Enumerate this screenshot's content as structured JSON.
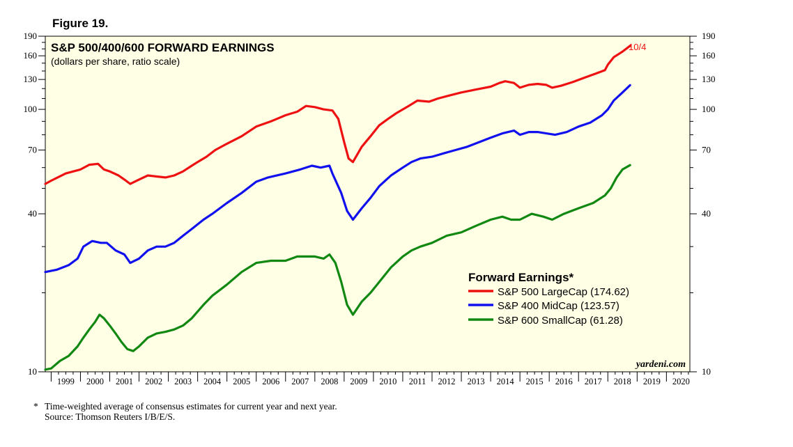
{
  "figure_label": "Figure 19.",
  "watermark": "yardeni.com",
  "footnote": {
    "marker": "*",
    "line1": "Time-weighted average of consensus estimates for current year and next year.",
    "line2": "Source: Thomson Reuters I/B/E/S."
  },
  "colors": {
    "plot_bg": "#ffffe6",
    "sp500": "#ee1111",
    "sp400": "#1111ee",
    "sp600": "#118811",
    "end_label": "#ee1111"
  },
  "chart_data": {
    "type": "line",
    "title": "S&P 500/400/600 FORWARD EARNINGS",
    "subtitle": "(dollars per share, ratio scale)",
    "y_scale": "log",
    "ylim": [
      10,
      190
    ],
    "xlim": [
      1998.8,
      2020.8
    ],
    "yticks": [
      10,
      40,
      70,
      100,
      130,
      160,
      190
    ],
    "y_tick_labels": [
      "10",
      "40",
      "70",
      "100",
      "130",
      "160",
      "190"
    ],
    "y_minor_ticks": [
      20,
      30,
      50,
      60,
      80,
      90,
      110,
      120,
      140,
      150,
      170,
      180
    ],
    "x_tick_labels": [
      "1999",
      "2000",
      "2001",
      "2002",
      "2003",
      "2004",
      "2005",
      "2006",
      "2007",
      "2008",
      "2009",
      "2010",
      "2011",
      "2012",
      "2013",
      "2014",
      "2015",
      "2016",
      "2017",
      "2018",
      "2019",
      "2020"
    ],
    "end_label": "10/4",
    "legend": {
      "title": "Forward Earnings*",
      "position": "right-center",
      "entries": [
        "S&P 500 LargeCap (174.62)",
        "S&P 400 MidCap (123.57)",
        "S&P 600 SmallCap (61.28)"
      ]
    },
    "series": [
      {
        "name": "S&P 500 LargeCap",
        "last_value": 174.62,
        "points": [
          [
            1998.8,
            52
          ],
          [
            1999.0,
            53.5
          ],
          [
            1999.5,
            57
          ],
          [
            2000.0,
            59
          ],
          [
            2000.3,
            61.5
          ],
          [
            2000.6,
            62
          ],
          [
            2000.8,
            59
          ],
          [
            2001.0,
            58
          ],
          [
            2001.3,
            56
          ],
          [
            2001.5,
            54
          ],
          [
            2001.7,
            52
          ],
          [
            2002.0,
            54
          ],
          [
            2002.3,
            56
          ],
          [
            2002.6,
            55.5
          ],
          [
            2002.9,
            55
          ],
          [
            2003.2,
            56
          ],
          [
            2003.5,
            58
          ],
          [
            2003.8,
            61
          ],
          [
            2004.0,
            63
          ],
          [
            2004.3,
            66
          ],
          [
            2004.6,
            70
          ],
          [
            2005.0,
            74
          ],
          [
            2005.5,
            79
          ],
          [
            2006.0,
            86
          ],
          [
            2006.5,
            90
          ],
          [
            2007.0,
            95
          ],
          [
            2007.4,
            98
          ],
          [
            2007.7,
            103
          ],
          [
            2008.0,
            102
          ],
          [
            2008.3,
            100
          ],
          [
            2008.6,
            99
          ],
          [
            2008.8,
            92
          ],
          [
            2009.0,
            75
          ],
          [
            2009.15,
            65
          ],
          [
            2009.3,
            63
          ],
          [
            2009.6,
            72
          ],
          [
            2009.9,
            79
          ],
          [
            2010.2,
            87
          ],
          [
            2010.5,
            92
          ],
          [
            2010.8,
            97
          ],
          [
            2011.2,
            103
          ],
          [
            2011.5,
            108
          ],
          [
            2011.9,
            107
          ],
          [
            2012.2,
            110
          ],
          [
            2012.6,
            113
          ],
          [
            2013.0,
            116
          ],
          [
            2013.5,
            119
          ],
          [
            2014.0,
            122
          ],
          [
            2014.3,
            126
          ],
          [
            2014.5,
            128
          ],
          [
            2014.8,
            126
          ],
          [
            2015.0,
            121
          ],
          [
            2015.3,
            124
          ],
          [
            2015.6,
            125
          ],
          [
            2015.9,
            124
          ],
          [
            2016.1,
            121
          ],
          [
            2016.4,
            123
          ],
          [
            2016.8,
            127
          ],
          [
            2017.2,
            132
          ],
          [
            2017.6,
            137
          ],
          [
            2017.9,
            141
          ],
          [
            2018.0,
            148
          ],
          [
            2018.2,
            158
          ],
          [
            2018.5,
            166
          ],
          [
            2018.76,
            174.62
          ]
        ]
      },
      {
        "name": "S&P 400 MidCap",
        "last_value": 123.57,
        "points": [
          [
            1998.8,
            24
          ],
          [
            1999.2,
            24.5
          ],
          [
            1999.6,
            25.5
          ],
          [
            1999.9,
            27
          ],
          [
            2000.1,
            30
          ],
          [
            2000.4,
            31.5
          ],
          [
            2000.7,
            31
          ],
          [
            2000.9,
            31
          ],
          [
            2001.2,
            29
          ],
          [
            2001.5,
            28
          ],
          [
            2001.7,
            26
          ],
          [
            2002.0,
            27
          ],
          [
            2002.3,
            29
          ],
          [
            2002.6,
            30
          ],
          [
            2002.9,
            30
          ],
          [
            2003.2,
            31
          ],
          [
            2003.5,
            33
          ],
          [
            2003.8,
            35
          ],
          [
            2004.2,
            38
          ],
          [
            2004.5,
            40
          ],
          [
            2005.0,
            44
          ],
          [
            2005.5,
            48
          ],
          [
            2006.0,
            53
          ],
          [
            2006.4,
            55
          ],
          [
            2007.0,
            57
          ],
          [
            2007.5,
            59
          ],
          [
            2007.9,
            61
          ],
          [
            2008.2,
            60
          ],
          [
            2008.5,
            61
          ],
          [
            2008.6,
            57
          ],
          [
            2008.9,
            48
          ],
          [
            2009.1,
            41
          ],
          [
            2009.3,
            38
          ],
          [
            2009.6,
            42
          ],
          [
            2009.9,
            46
          ],
          [
            2010.2,
            51
          ],
          [
            2010.6,
            56
          ],
          [
            2011.0,
            60
          ],
          [
            2011.3,
            63
          ],
          [
            2011.6,
            65
          ],
          [
            2012.0,
            66
          ],
          [
            2012.4,
            68
          ],
          [
            2012.8,
            70
          ],
          [
            2013.2,
            72
          ],
          [
            2013.6,
            75
          ],
          [
            2014.0,
            78
          ],
          [
            2014.4,
            81
          ],
          [
            2014.8,
            83
          ],
          [
            2015.0,
            80
          ],
          [
            2015.3,
            82
          ],
          [
            2015.6,
            82
          ],
          [
            2015.9,
            81
          ],
          [
            2016.2,
            80
          ],
          [
            2016.6,
            82
          ],
          [
            2017.0,
            86
          ],
          [
            2017.4,
            89
          ],
          [
            2017.8,
            95
          ],
          [
            2018.0,
            100
          ],
          [
            2018.2,
            108
          ],
          [
            2018.5,
            116
          ],
          [
            2018.76,
            123.57
          ]
        ]
      },
      {
        "name": "S&P 600 SmallCap",
        "last_value": 61.28,
        "points": [
          [
            1998.8,
            10.2
          ],
          [
            1999.0,
            10.3
          ],
          [
            1999.3,
            11
          ],
          [
            1999.6,
            11.5
          ],
          [
            1999.9,
            12.5
          ],
          [
            2000.1,
            13.5
          ],
          [
            2000.3,
            14.5
          ],
          [
            2000.5,
            15.5
          ],
          [
            2000.65,
            16.5
          ],
          [
            2000.8,
            16
          ],
          [
            2001.0,
            15
          ],
          [
            2001.2,
            14
          ],
          [
            2001.4,
            13
          ],
          [
            2001.6,
            12.2
          ],
          [
            2001.8,
            12
          ],
          [
            2002.0,
            12.5
          ],
          [
            2002.3,
            13.5
          ],
          [
            2002.6,
            14
          ],
          [
            2002.9,
            14.2
          ],
          [
            2003.2,
            14.5
          ],
          [
            2003.5,
            15
          ],
          [
            2003.8,
            16
          ],
          [
            2004.2,
            18
          ],
          [
            2004.5,
            19.5
          ],
          [
            2005.0,
            21.5
          ],
          [
            2005.5,
            24
          ],
          [
            2006.0,
            26
          ],
          [
            2006.5,
            26.5
          ],
          [
            2007.0,
            26.5
          ],
          [
            2007.4,
            27.5
          ],
          [
            2007.8,
            27.5
          ],
          [
            2008.0,
            27.5
          ],
          [
            2008.3,
            27
          ],
          [
            2008.5,
            28
          ],
          [
            2008.7,
            26
          ],
          [
            2008.9,
            22
          ],
          [
            2009.1,
            18
          ],
          [
            2009.3,
            16.5
          ],
          [
            2009.6,
            18.5
          ],
          [
            2009.9,
            20
          ],
          [
            2010.2,
            22
          ],
          [
            2010.6,
            25
          ],
          [
            2011.0,
            27.5
          ],
          [
            2011.3,
            29
          ],
          [
            2011.6,
            30
          ],
          [
            2012.0,
            31
          ],
          [
            2012.5,
            33
          ],
          [
            2013.0,
            34
          ],
          [
            2013.5,
            36
          ],
          [
            2014.0,
            38
          ],
          [
            2014.4,
            39
          ],
          [
            2014.7,
            38
          ],
          [
            2015.0,
            38
          ],
          [
            2015.4,
            40
          ],
          [
            2015.8,
            39
          ],
          [
            2016.1,
            38
          ],
          [
            2016.5,
            40
          ],
          [
            2017.0,
            42
          ],
          [
            2017.5,
            44
          ],
          [
            2017.9,
            47
          ],
          [
            2018.1,
            50
          ],
          [
            2018.3,
            55
          ],
          [
            2018.5,
            59
          ],
          [
            2018.76,
            61.28
          ]
        ]
      }
    ]
  }
}
